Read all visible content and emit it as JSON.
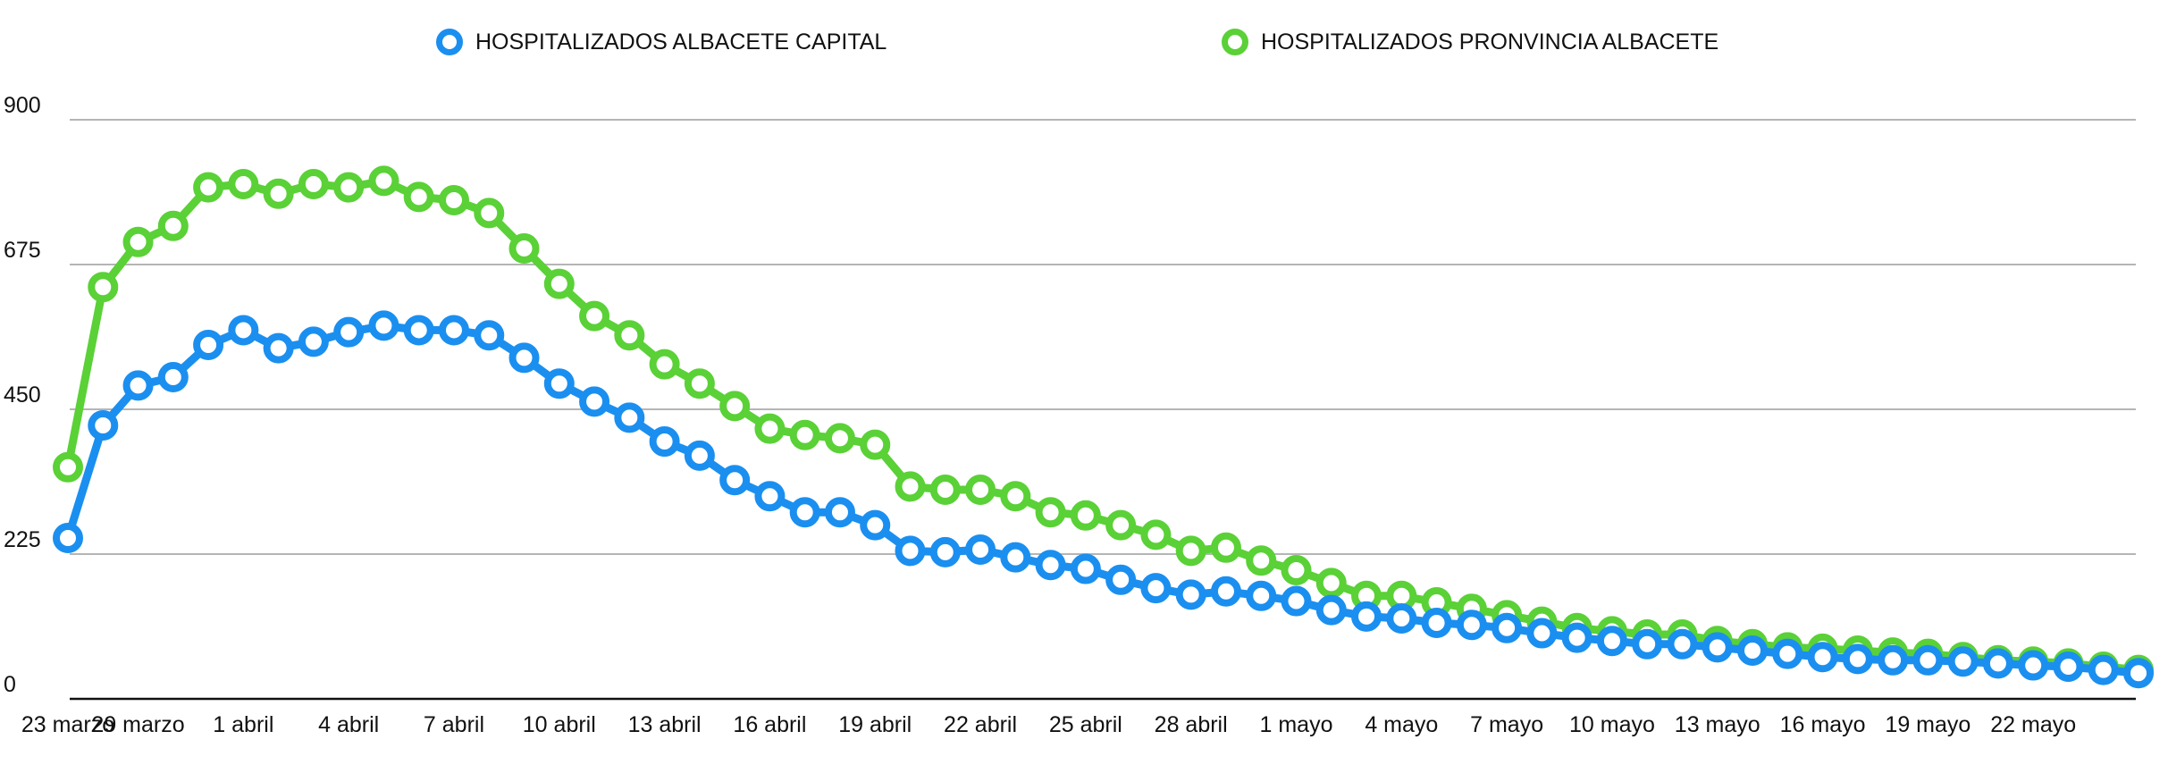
{
  "legend": {
    "capital_label": "HOSPITALIZADOS ALBACETE CAPITAL",
    "provincia_label": "HOSPITALIZADOS PRONVINCIA ALBACETE"
  },
  "chart_data": {
    "type": "line",
    "title": "",
    "xlabel": "",
    "ylabel": "",
    "ylim": [
      0,
      900
    ],
    "yticks": [
      0,
      225,
      450,
      675,
      900
    ],
    "grid": true,
    "legend_position": "top",
    "x_tick_labels": [
      "23 marzo",
      "29 marzo",
      "1 abril",
      "4 abril",
      "7 abril",
      "10 abril",
      "13 abril",
      "16 abril",
      "19 abril",
      "22 abril",
      "25 abril",
      "28 abril",
      "1 mayo",
      "4 mayo",
      "7 mayo",
      "10 mayo",
      "13 mayo",
      "16 mayo",
      "19 mayo",
      "22 mayo"
    ],
    "x_tick_positions": [
      0,
      2,
      5,
      8,
      11,
      14,
      17,
      20,
      23,
      26,
      29,
      32,
      35,
      38,
      41,
      44,
      47,
      50,
      53,
      56
    ],
    "series": [
      {
        "name": "HOSPITALIZADOS ALBACETE CAPITAL",
        "color": "#1a8ff0",
        "values": [
          250,
          425,
          487,
          500,
          550,
          573,
          545,
          555,
          570,
          580,
          573,
          573,
          565,
          530,
          490,
          462,
          437,
          400,
          378,
          340,
          315,
          290,
          290,
          270,
          230,
          228,
          232,
          220,
          208,
          202,
          185,
          172,
          162,
          167,
          160,
          152,
          138,
          128,
          125,
          118,
          115,
          110,
          102,
          95,
          90,
          85,
          85,
          80,
          75,
          70,
          65,
          62,
          60,
          60,
          58,
          55,
          52,
          50,
          45,
          40
        ]
      },
      {
        "name": "HOSPITALIZADOS PRONVINCIA ALBACETE",
        "color": "#5ad136",
        "values": [
          360,
          640,
          710,
          735,
          795,
          800,
          785,
          800,
          795,
          805,
          780,
          775,
          755,
          700,
          645,
          595,
          565,
          520,
          490,
          455,
          420,
          410,
          405,
          395,
          330,
          325,
          325,
          315,
          290,
          285,
          270,
          255,
          230,
          235,
          215,
          200,
          180,
          160,
          160,
          150,
          140,
          130,
          120,
          110,
          105,
          100,
          100,
          90,
          85,
          80,
          78,
          75,
          72,
          70,
          65,
          60,
          58,
          55,
          50,
          45
        ]
      }
    ]
  }
}
